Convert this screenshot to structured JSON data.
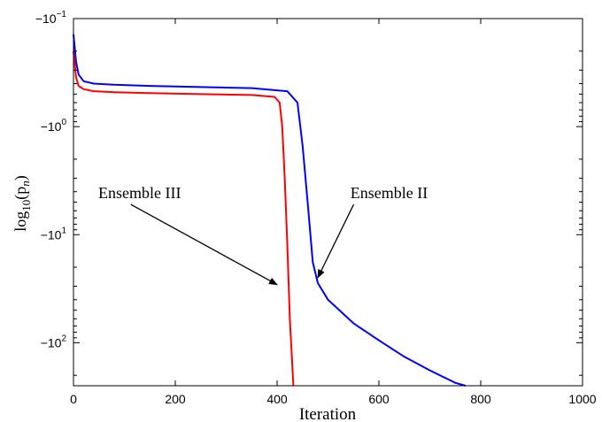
{
  "chart_data": {
    "type": "line",
    "xlabel": "Iteration",
    "ylabel": "log10(pn)",
    "ylabel_parts": {
      "prefix": "log",
      "base": "10",
      "arg": "(p",
      "sub": "n",
      "close": ")"
    },
    "xlim": [
      0,
      1000
    ],
    "x_ticks": [
      0,
      200,
      400,
      600,
      800,
      1000
    ],
    "y_scale": "symlog-negative",
    "y_tick_values": [
      -0.1,
      -1,
      -10,
      -100
    ],
    "y_ticks": [
      {
        "value": -0.1,
        "base": "−10",
        "exp": "−1"
      },
      {
        "value": -1,
        "base": "−10",
        "exp": "0"
      },
      {
        "value": -10,
        "base": "−10",
        "exp": "1"
      },
      {
        "value": -100,
        "base": "−10",
        "exp": "2"
      }
    ],
    "ylim": [
      -0.1,
      -250
    ],
    "grid": false,
    "series": [
      {
        "name": "Ensemble II",
        "color": "#0000ff",
        "x": [
          0,
          5,
          10,
          20,
          40,
          80,
          150,
          250,
          350,
          420,
          440,
          450,
          460,
          470,
          480,
          500,
          550,
          600,
          650,
          700,
          750,
          770
        ],
        "y": [
          -0.14,
          -0.25,
          -0.33,
          -0.38,
          -0.4,
          -0.41,
          -0.42,
          -0.43,
          -0.44,
          -0.47,
          -0.6,
          -1.5,
          -5,
          -18,
          -28,
          -40,
          -66,
          -95,
          -135,
          -180,
          -235,
          -250
        ]
      },
      {
        "name": "Ensemble III",
        "color": "#ff0000",
        "x": [
          0,
          5,
          10,
          20,
          40,
          80,
          150,
          250,
          350,
          395,
          405,
          410,
          415,
          420,
          425,
          432
        ],
        "y": [
          -0.2,
          -0.35,
          -0.42,
          -0.45,
          -0.47,
          -0.48,
          -0.49,
          -0.5,
          -0.51,
          -0.53,
          -0.6,
          -1,
          -3,
          -12,
          -60,
          -250
        ]
      }
    ],
    "annotations": [
      {
        "text": "Ensemble III",
        "x_text": 130,
        "y_text": -4.6,
        "x_arrow": 400,
        "y_arrow": -29
      },
      {
        "text": "Ensemble II",
        "x_text": 620,
        "y_text": -4.6,
        "x_arrow": 480,
        "y_arrow": -25
      }
    ]
  }
}
